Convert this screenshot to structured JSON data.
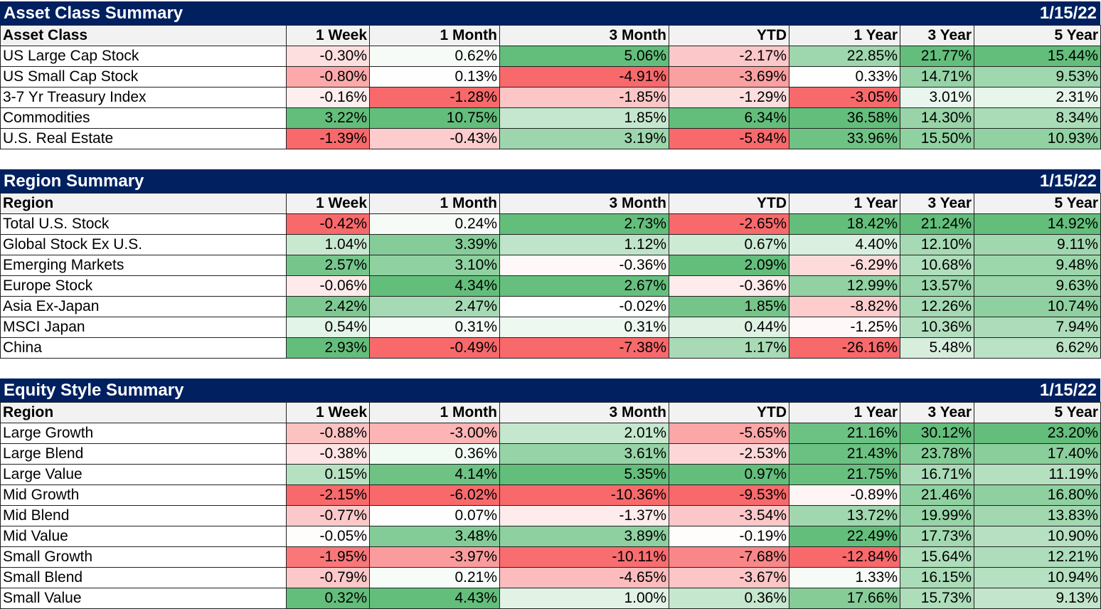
{
  "colors": {
    "title_bg": "#002060",
    "title_fg": "#ffffff",
    "positive": "#63be7b",
    "negative": "#f8696b",
    "neutral": "#ffffff"
  },
  "columns": [
    "1 Week",
    "1 Month",
    "3 Month",
    "YTD",
    "1 Year",
    "3 Year",
    "5 Year"
  ],
  "sections": [
    {
      "id": "asset",
      "title": "Asset Class Summary",
      "date": "1/15/22",
      "first_header": "Asset Class",
      "rows": [
        {
          "label": "US Large Cap Stock",
          "values": [
            "-0.30%",
            "0.62%",
            "5.06%",
            "-2.17%",
            "22.85%",
            "21.77%",
            "15.44%"
          ]
        },
        {
          "label": "US Small Cap Stock",
          "values": [
            "-0.80%",
            "0.13%",
            "-4.91%",
            "-3.69%",
            "0.33%",
            "14.71%",
            "9.53%"
          ]
        },
        {
          "label": "3-7 Yr Treasury Index",
          "values": [
            "-0.16%",
            "-1.28%",
            "-1.85%",
            "-1.29%",
            "-3.05%",
            "3.01%",
            "2.31%"
          ]
        },
        {
          "label": "Commodities",
          "values": [
            "3.22%",
            "10.75%",
            "1.85%",
            "6.34%",
            "36.58%",
            "14.30%",
            "8.34%"
          ]
        },
        {
          "label": "U.S. Real Estate",
          "values": [
            "-1.39%",
            "-0.43%",
            "3.19%",
            "-5.84%",
            "33.96%",
            "15.50%",
            "10.93%"
          ]
        }
      ]
    },
    {
      "id": "region",
      "title": "Region Summary",
      "date": "1/15/22",
      "first_header": "Region",
      "rows": [
        {
          "label": "Total U.S. Stock",
          "values": [
            "-0.42%",
            "0.24%",
            "2.73%",
            "-2.65%",
            "18.42%",
            "21.24%",
            "14.92%"
          ]
        },
        {
          "label": "Global Stock Ex U.S.",
          "values": [
            "1.04%",
            "3.39%",
            "1.12%",
            "0.67%",
            "4.40%",
            "12.10%",
            "9.11%"
          ]
        },
        {
          "label": "Emerging Markets",
          "values": [
            "2.57%",
            "3.10%",
            "-0.36%",
            "2.09%",
            "-6.29%",
            "10.68%",
            "9.48%"
          ]
        },
        {
          "label": "Europe Stock",
          "values": [
            "-0.06%",
            "4.34%",
            "2.67%",
            "-0.36%",
            "12.99%",
            "13.57%",
            "9.63%"
          ]
        },
        {
          "label": "Asia Ex-Japan",
          "values": [
            "2.42%",
            "2.47%",
            "-0.02%",
            "1.85%",
            "-8.82%",
            "12.26%",
            "10.74%"
          ]
        },
        {
          "label": "MSCI Japan",
          "values": [
            "0.54%",
            "0.31%",
            "0.31%",
            "0.44%",
            "-1.25%",
            "10.36%",
            "7.94%"
          ]
        },
        {
          "label": "China",
          "values": [
            "2.93%",
            "-0.49%",
            "-7.38%",
            "1.17%",
            "-26.16%",
            "5.48%",
            "6.62%"
          ]
        }
      ]
    },
    {
      "id": "style",
      "title": "Equity Style Summary",
      "date": "1/15/22",
      "first_header": "Region",
      "rows": [
        {
          "label": "Large Growth",
          "values": [
            "-0.88%",
            "-3.00%",
            "2.01%",
            "-5.65%",
            "21.16%",
            "30.12%",
            "23.20%"
          ]
        },
        {
          "label": "Large Blend",
          "values": [
            "-0.38%",
            "0.36%",
            "3.61%",
            "-2.53%",
            "21.43%",
            "23.78%",
            "17.40%"
          ]
        },
        {
          "label": "Large Value",
          "values": [
            "0.15%",
            "4.14%",
            "5.35%",
            "0.97%",
            "21.75%",
            "16.71%",
            "11.19%"
          ]
        },
        {
          "label": "Mid Growth",
          "values": [
            "-2.15%",
            "-6.02%",
            "-10.36%",
            "-9.53%",
            "-0.89%",
            "21.46%",
            "16.80%"
          ]
        },
        {
          "label": "Mid Blend",
          "values": [
            "-0.77%",
            "0.07%",
            "-1.37%",
            "-3.54%",
            "13.72%",
            "19.99%",
            "13.83%"
          ]
        },
        {
          "label": "Mid Value",
          "values": [
            "-0.05%",
            "3.48%",
            "3.89%",
            "-0.19%",
            "22.49%",
            "17.73%",
            "10.90%"
          ]
        },
        {
          "label": "Small Growth",
          "values": [
            "-1.95%",
            "-3.97%",
            "-10.11%",
            "-7.68%",
            "-12.84%",
            "15.64%",
            "12.21%"
          ]
        },
        {
          "label": "Small Blend",
          "values": [
            "-0.79%",
            "0.21%",
            "-4.65%",
            "-3.67%",
            "1.33%",
            "16.15%",
            "10.94%"
          ]
        },
        {
          "label": "Small Value",
          "values": [
            "0.32%",
            "4.43%",
            "1.00%",
            "0.36%",
            "17.66%",
            "15.73%",
            "9.13%"
          ]
        }
      ]
    }
  ]
}
